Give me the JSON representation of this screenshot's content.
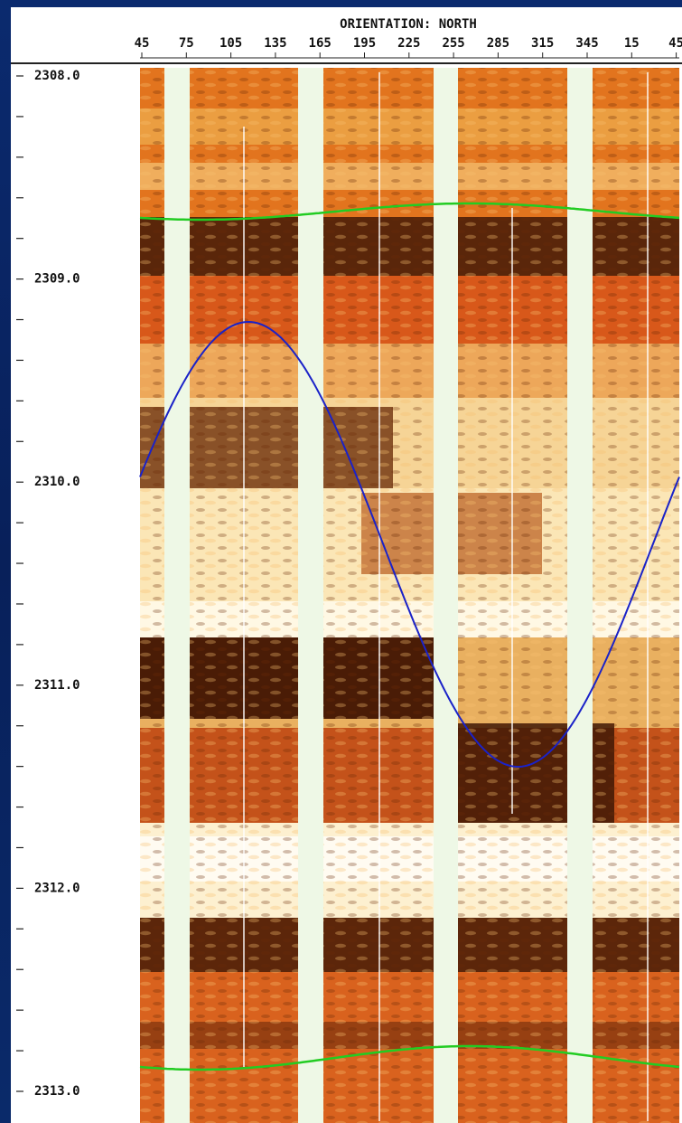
{
  "header": {
    "title": "ORIENTATION: NORTH",
    "azimuth_labels": [
      "45",
      "75",
      "105",
      "135",
      "165",
      "195",
      "225",
      "255",
      "285",
      "315",
      "345",
      "15",
      "45"
    ]
  },
  "depth_track": {
    "labels": [
      "2308.0",
      "2309.0",
      "2310.0",
      "2311.0",
      "2312.0",
      "2313.0"
    ]
  }
}
